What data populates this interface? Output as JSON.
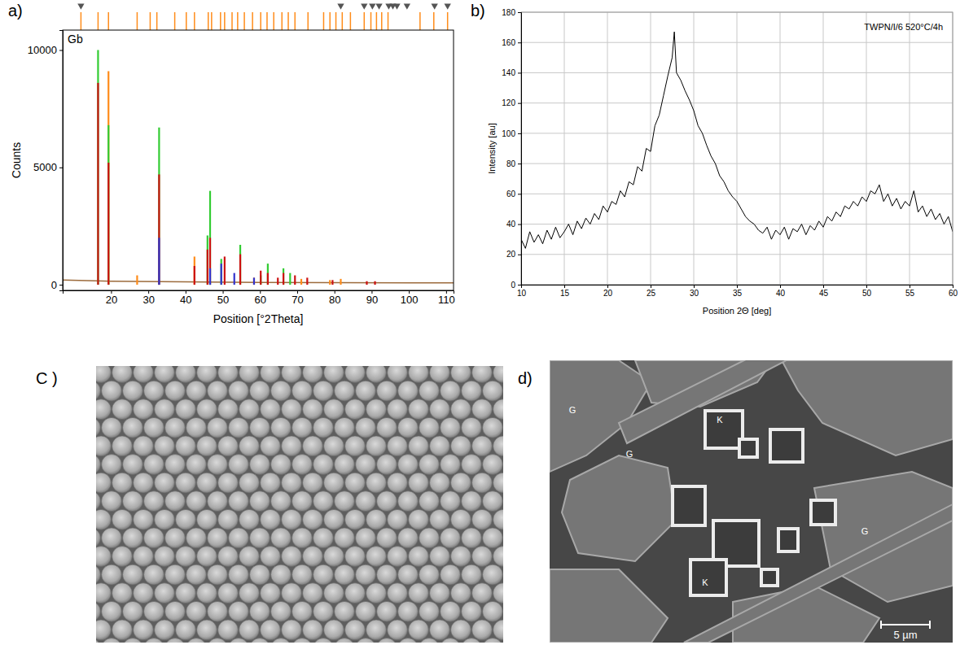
{
  "chart_data": [
    {
      "type": "stem",
      "label": "a)",
      "annotation": "Gb",
      "xlabel": "Position [°2Theta]",
      "ylabel": "Counts",
      "xlim": [
        7,
        112
      ],
      "ylim": [
        -240,
        10850
      ],
      "xticks": [
        20,
        30,
        40,
        50,
        60,
        70,
        80,
        90,
        100,
        110
      ],
      "yticks": [
        0,
        5000,
        10000
      ],
      "grid": false,
      "series": [
        {
          "type": "line",
          "color": "#9c6b3c",
          "x": [
            7,
            20,
            40,
            60,
            80,
            100,
            112
          ],
          "values": [
            200,
            150,
            120,
            100,
            90,
            80,
            80
          ]
        },
        {
          "color": "#ff8c1a",
          "x": [
            19.3,
            27.0,
            42.4,
            58.4,
            71.1,
            78.8,
            81.7
          ],
          "values": [
            9100,
            400,
            1200,
            300,
            250,
            200,
            250
          ]
        },
        {
          "color": "#33cc33",
          "x": [
            16.5,
            19.3,
            32.9,
            45.9,
            46.6,
            49.6,
            54.7,
            60.2,
            62.1,
            66.3,
            68.1
          ],
          "values": [
            10000,
            6800,
            6700,
            2100,
            4000,
            1100,
            1700,
            400,
            900,
            700,
            500
          ]
        },
        {
          "color": "#cc1111",
          "x": [
            16.5,
            19.3,
            32.9,
            42.4,
            45.9,
            46.6,
            50.5,
            54.7,
            60.2,
            62.1,
            64.8,
            66.3,
            69.4,
            72.7,
            79.5,
            88.7,
            90.9
          ],
          "values": [
            8600,
            5200,
            4700,
            800,
            1500,
            2000,
            1200,
            1300,
            600,
            500,
            300,
            500,
            400,
            300,
            200,
            150,
            150
          ]
        },
        {
          "color": "#3333cc",
          "x": [
            32.9,
            46.6,
            49.6,
            53.1,
            58.4
          ],
          "values": [
            2000,
            700,
            900,
            500,
            300
          ]
        }
      ],
      "reference_positions": {
        "color": "#ff8c1a",
        "x": [
          11.9,
          16.5,
          19.3,
          27.0,
          30.5,
          32.3,
          37.1,
          40.2,
          42.4,
          46.1,
          47.0,
          49.4,
          50.5,
          52.5,
          54.0,
          55.8,
          58.0,
          60.2,
          61.9,
          63.7,
          65.9,
          67.6,
          69.4,
          72.9,
          77.1,
          78.8,
          80.4,
          82.1,
          84.3,
          88.0,
          89.8,
          91.3,
          92.7,
          94.4,
          103.0,
          106.7,
          110.4
        ]
      },
      "markers": {
        "color": "#555555",
        "x": [
          11.9,
          81.7,
          88.0,
          90.2,
          92.0,
          94.6,
          95.7,
          96.8,
          99.5,
          106.9,
          110.4
        ]
      }
    },
    {
      "type": "line",
      "label": "b)",
      "annotation": "TWPN/I/6 520°C/4h",
      "xlabel": "Position 2Θ [deg]",
      "ylabel": "Intensity [au]",
      "xlim": [
        10,
        60
      ],
      "ylim": [
        0,
        180
      ],
      "xticks": [
        10,
        15,
        20,
        25,
        30,
        35,
        40,
        45,
        50,
        55,
        60
      ],
      "yticks": [
        0,
        20,
        40,
        60,
        80,
        100,
        120,
        140,
        160,
        180
      ],
      "grid": true,
      "x": [
        10,
        10.5,
        11,
        11.5,
        12,
        12.5,
        13,
        13.5,
        14,
        14.5,
        15,
        15.5,
        16,
        16.5,
        17,
        17.5,
        18,
        18.5,
        19,
        19.5,
        20,
        20.5,
        21,
        21.5,
        22,
        22.5,
        23,
        23.5,
        24,
        24.5,
        25,
        25.5,
        26,
        26.5,
        27,
        27.5,
        27.75,
        28,
        28.5,
        29,
        29.5,
        30,
        30.5,
        31,
        31.5,
        32,
        32.5,
        33,
        33.5,
        34,
        34.5,
        35,
        35.5,
        36,
        36.5,
        37,
        37.5,
        38,
        38.5,
        39,
        39.5,
        40,
        40.5,
        41,
        41.5,
        42,
        42.5,
        43,
        43.5,
        44,
        44.5,
        45,
        45.5,
        46,
        46.5,
        47,
        47.5,
        48,
        48.5,
        49,
        49.5,
        50,
        50.5,
        51,
        51.5,
        52,
        52.5,
        53,
        53.5,
        54,
        54.5,
        55,
        55.5,
        56,
        56.5,
        57,
        57.5,
        58,
        58.5,
        59,
        59.5,
        60
      ],
      "series": [
        {
          "color": "#000000",
          "values": [
            30,
            24,
            35,
            28,
            33,
            27,
            36,
            30,
            38,
            31,
            35,
            40,
            33,
            42,
            37,
            44,
            40,
            47,
            43,
            52,
            48,
            55,
            53,
            62,
            58,
            68,
            66,
            78,
            75,
            90,
            88,
            105,
            112,
            125,
            138,
            150,
            167,
            140,
            135,
            128,
            122,
            115,
            105,
            100,
            92,
            85,
            80,
            72,
            68,
            62,
            58,
            55,
            50,
            45,
            42,
            40,
            36,
            34,
            38,
            30,
            36,
            33,
            38,
            30,
            37,
            35,
            40,
            33,
            39,
            36,
            42,
            38,
            45,
            42,
            48,
            45,
            52,
            50,
            55,
            52,
            58,
            55,
            62,
            60,
            66,
            55,
            60,
            52,
            57,
            50,
            55,
            52,
            62,
            48,
            52,
            45,
            50,
            43,
            47,
            40,
            45,
            35
          ]
        }
      ]
    }
  ],
  "images": [
    {
      "label": "C )"
    },
    {
      "label": "d)",
      "labels": [
        "G",
        "G",
        "K",
        "K",
        "G"
      ],
      "scale_bar": "5 µm"
    }
  ]
}
